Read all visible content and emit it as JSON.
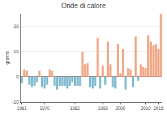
{
  "chart_data": {
    "type": "bar",
    "title": "Onde di calore",
    "ylabel": "giorni",
    "x": [
      1961,
      1962,
      1963,
      1964,
      1965,
      1966,
      1967,
      1968,
      1969,
      1970,
      1971,
      1972,
      1973,
      1974,
      1975,
      1976,
      1977,
      1978,
      1979,
      1980,
      1981,
      1982,
      1983,
      1984,
      1985,
      1986,
      1987,
      1988,
      1989,
      1990,
      1991,
      1992,
      1993,
      1994,
      1995,
      1996,
      1997,
      1998,
      1999,
      2000,
      2001,
      2002,
      2003,
      2004,
      2005,
      2006,
      2007,
      2008,
      2009,
      2010,
      2011,
      2012,
      2013,
      2014,
      2015,
      2016
    ],
    "values": [
      -2.5,
      3.0,
      2.5,
      -3.0,
      -4.0,
      -3.5,
      -2.0,
      2.5,
      -4.0,
      -4.5,
      -3.0,
      3.0,
      2.5,
      -3.5,
      -5.0,
      -3.5,
      -3.5,
      -3.5,
      -4.5,
      -3.5,
      -2.0,
      -3.5,
      -3.5,
      -3.5,
      10.0,
      5.0,
      5.5,
      -4.0,
      -4.5,
      -3.5,
      15.5,
      -4.5,
      4.5,
      -3.0,
      14.0,
      5.0,
      -4.0,
      -4.5,
      13.0,
      1.5,
      11.0,
      -5.0,
      3.5,
      3.0,
      -4.0,
      16.0,
      -1.5,
      5.0,
      4.0,
      3.5,
      16.5,
      14.0,
      12.5,
      13.0,
      11.0,
      25.0
    ],
    "colors": [
      "#82bcd0",
      "#f0a888",
      "#f0a888",
      "#82bcd0",
      "#82bcd0",
      "#82bcd0",
      "#82bcd0",
      "#f0a888",
      "#82bcd0",
      "#82bcd0",
      "#82bcd0",
      "#f0a888",
      "#f0a888",
      "#82bcd0",
      "#82bcd0",
      "#82bcd0",
      "#82bcd0",
      "#82bcd0",
      "#82bcd0",
      "#82bcd0",
      "#82bcd0",
      "#82bcd0",
      "#82bcd0",
      "#82bcd0",
      "#f0a888",
      "#f0a888",
      "#f0a888",
      "#82bcd0",
      "#82bcd0",
      "#82bcd0",
      "#f0a888",
      "#82bcd0",
      "#f0a888",
      "#82bcd0",
      "#f0a888",
      "#f0a888",
      "#82bcd0",
      "#82bcd0",
      "#f0a888",
      "#f0a888",
      "#f0a888",
      "#82bcd0",
      "#f0a888",
      "#f0a888",
      "#82bcd0",
      "#f0a888",
      "#82bcd0",
      "#f0a888",
      "#f0a888",
      "#f0a888",
      "#f0a888",
      "#f0a888",
      "#f0a888",
      "#f0a888",
      "#f0a888",
      "#f0a888"
    ],
    "xlim": [
      1960.5,
      2016.5
    ],
    "xticks": [
      1961,
      1970,
      1982,
      1993,
      2000,
      2010,
      2015
    ],
    "ylim": [
      -10,
      25
    ],
    "yticks": [
      -10,
      0,
      10,
      20
    ],
    "grid": true
  }
}
